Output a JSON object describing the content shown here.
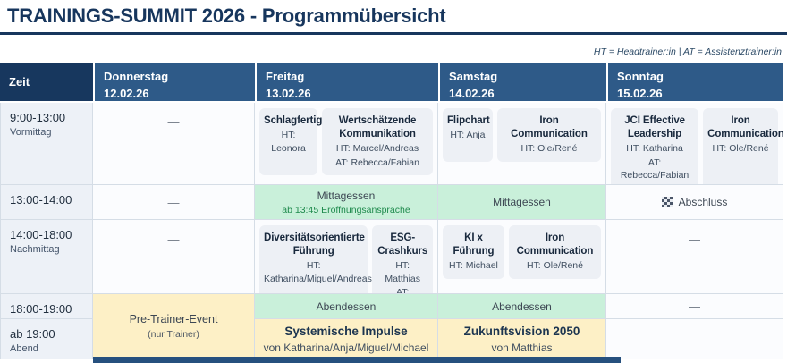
{
  "page": {
    "title": "TRAININGS-SUMMIT 2026 - Programmübersicht",
    "legend": "HT = Headtrainer:in | AT = Assistenztrainer:in"
  },
  "colors": {
    "header_dark_navy": "#17375e",
    "header_steel_blue": "#2e5a88",
    "meal_green_bg": "#c9f0da",
    "meal_note_green": "#1e8a4c",
    "event_yellow_bg": "#fdf0c6",
    "session_card_bg": "#edf0f5",
    "accent_navy": "#17365d"
  },
  "table": {
    "time_header": "Zeit",
    "days": [
      {
        "name": "Donnerstag",
        "date": "12.02.26"
      },
      {
        "name": "Freitag",
        "date": "13.02.26"
      },
      {
        "name": "Samstag",
        "date": "14.02.26"
      },
      {
        "name": "Sonntag",
        "date": "15.02.26"
      }
    ],
    "time_slots": [
      {
        "time": "9:00-13:00",
        "label": "Vormittag"
      },
      {
        "time": "13:00-14:00",
        "label": ""
      },
      {
        "time": "14:00-18:00",
        "label": "Nachmittag"
      },
      {
        "time": "18:00-19:00",
        "label": ""
      },
      {
        "time": "ab 19:00",
        "label": "Abend"
      }
    ],
    "empty_marker": "—",
    "thursday": {
      "evening": {
        "title": "Pre-Trainer-Event",
        "note": "(nur Trainer)"
      }
    },
    "friday": {
      "morning": [
        {
          "title": "Schlagfertigkeit",
          "line1": "HT: Leonora"
        },
        {
          "title": "Wertschätzende Kommunikation",
          "line1": "HT: Marcel/Andreas",
          "line2": "AT: Rebecca/Fabian"
        }
      ],
      "lunch": {
        "label": "Mittagessen",
        "note": "ab 13:45 Eröffnungsansprache"
      },
      "afternoon": [
        {
          "title": "Diversitätsorientierte Führung",
          "line1": "HT: Katharina/Miguel/Andreas"
        },
        {
          "title": "ESG-Crashkurs",
          "line1": "HT: Matthias",
          "line2": "AT: Friederike"
        }
      ],
      "dinner": "Abendessen",
      "evening": {
        "title": "Systemische Impulse",
        "note": "von Katharina/Anja/Miguel/Michael"
      }
    },
    "saturday": {
      "morning": [
        {
          "title": "Flipchart",
          "line1": "HT: Anja"
        },
        {
          "title": "Iron Communication",
          "line1": "HT: Ole/René"
        }
      ],
      "lunch": {
        "label": "Mittagessen"
      },
      "afternoon": [
        {
          "title": "KI x Führung",
          "line1": "HT: Michael"
        },
        {
          "title": "Iron Communication",
          "line1": "HT: Ole/René"
        }
      ],
      "dinner": "Abendessen",
      "evening": {
        "title": "Zukunftsvision 2050",
        "note": "von Matthias"
      }
    },
    "sunday": {
      "morning": [
        {
          "title": "JCI Effective Leadership",
          "line1": "HT: Katharina",
          "line2": "AT: Rebecca/Fabian"
        },
        {
          "title": "Iron Communication",
          "line1": "HT: Ole/René"
        }
      ],
      "lunch": {
        "label": "Abschluss",
        "icon": "checkered-flag-icon"
      }
    }
  }
}
